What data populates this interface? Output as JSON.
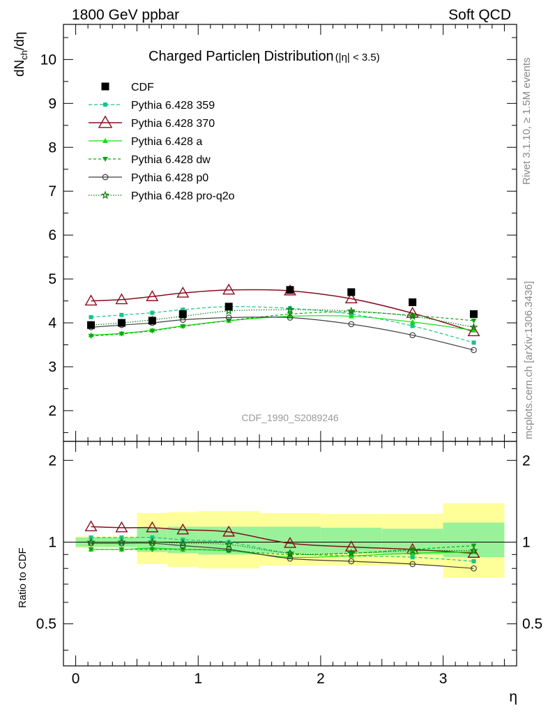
{
  "header": {
    "left": "1800 GeV ppbar",
    "right": "Soft QCD"
  },
  "side_text": {
    "rivet": "Rivet 3.1.10, ≥ 1.5M events",
    "mcplots": "mcplots.cern.ch [arXiv:1306.3436]"
  },
  "chart_data": {
    "type": "line",
    "title": "Charged Particleη Distribution",
    "title_cut": "(|η| < 3.5)",
    "xlabel": "η",
    "ylabel": "dN",
    "ylabel_sub": "ch",
    "ylabel_tail": "/dη",
    "ratio_ylabel": "Ratio to CDF",
    "analysis_id": "CDF_1990_S2089246",
    "xlim": [
      -0.1,
      3.6
    ],
    "ylim": [
      1.3,
      10.8
    ],
    "ratio_ylim": [
      0.35,
      2.35
    ],
    "x_ticks": [
      "0",
      "1",
      "2",
      "3"
    ],
    "y_ticks": [
      "2",
      "3",
      "4",
      "5",
      "6",
      "7",
      "8",
      "9",
      "10"
    ],
    "ratio_ticks": [
      "0.5",
      "1",
      "2"
    ],
    "colors": {
      "cdf": "#000000",
      "p359": "#19c38a",
      "p370": "#8b0a1e",
      "pa": "#11dd11",
      "pdw": "#0ea80e",
      "pp0": "#3f3f3f",
      "pq2o": "#0a7a0a",
      "band_outer": "#ffff99",
      "band_inner": "#99f299"
    },
    "bins": [
      {
        "lo": 0.0,
        "hi": 0.25
      },
      {
        "lo": 0.25,
        "hi": 0.5
      },
      {
        "lo": 0.5,
        "hi": 0.75
      },
      {
        "lo": 0.75,
        "hi": 1.0
      },
      {
        "lo": 1.0,
        "hi": 1.5
      },
      {
        "lo": 1.5,
        "hi": 2.0
      },
      {
        "lo": 2.0,
        "hi": 2.5
      },
      {
        "lo": 2.5,
        "hi": 3.0
      },
      {
        "lo": 3.0,
        "hi": 3.5
      }
    ],
    "x": [
      0.125,
      0.375,
      0.625,
      0.875,
      1.25,
      1.75,
      2.25,
      2.75,
      3.25
    ],
    "cdf": {
      "name": "CDF",
      "x": [
        0.125,
        0.375,
        0.625,
        0.875,
        1.25,
        1.75,
        2.25,
        2.75,
        3.25
      ],
      "values": [
        3.95,
        4.0,
        4.05,
        4.2,
        4.37,
        4.75,
        4.7,
        4.47,
        4.2
      ],
      "band_outer": [
        [
          0.95,
          1.05
        ],
        [
          0.95,
          1.05
        ],
        [
          0.83,
          1.28
        ],
        [
          0.81,
          1.29
        ],
        [
          0.8,
          1.3
        ],
        [
          0.82,
          1.28
        ],
        [
          0.82,
          1.27
        ],
        [
          0.82,
          1.27
        ],
        [
          0.74,
          1.39
        ]
      ],
      "band_inner": [
        [
          0.96,
          1.04
        ],
        [
          0.96,
          1.04
        ],
        [
          0.92,
          1.13
        ],
        [
          0.91,
          1.14
        ],
        [
          0.9,
          1.14
        ],
        [
          0.91,
          1.14
        ],
        [
          0.91,
          1.13
        ],
        [
          0.9,
          1.12
        ],
        [
          0.88,
          1.18
        ]
      ]
    },
    "series": [
      {
        "key": "p359",
        "name": "Pythia 6.428 359",
        "marker": "square-small",
        "dash": "5,3",
        "values": [
          4.13,
          4.18,
          4.23,
          4.3,
          4.37,
          4.33,
          4.2,
          3.93,
          3.55
        ],
        "ratio": [
          1.04,
          1.04,
          1.04,
          1.02,
          1.0,
          0.91,
          0.89,
          0.88,
          0.85
        ]
      },
      {
        "key": "p370",
        "name": "Pythia 6.428 370",
        "marker": "triangle-open",
        "dash": "",
        "values": [
          4.5,
          4.53,
          4.6,
          4.68,
          4.75,
          4.73,
          4.55,
          4.22,
          3.8
        ],
        "ratio": [
          1.14,
          1.13,
          1.13,
          1.11,
          1.09,
          0.99,
          0.96,
          0.94,
          0.91
        ]
      },
      {
        "key": "pa",
        "name": "Pythia 6.428 a",
        "marker": "triangle",
        "dash": "",
        "values": [
          3.72,
          3.76,
          3.83,
          3.93,
          4.05,
          4.15,
          4.15,
          4.02,
          3.83
        ],
        "ratio": [
          0.94,
          0.94,
          0.95,
          0.94,
          0.93,
          0.88,
          0.89,
          0.91,
          0.92
        ]
      },
      {
        "key": "pdw",
        "name": "Pythia 6.428 dw",
        "marker": "triangle-down",
        "dash": "4,3",
        "values": [
          3.7,
          3.75,
          3.82,
          3.92,
          4.05,
          4.2,
          4.25,
          4.17,
          4.05
        ],
        "ratio": [
          0.94,
          0.94,
          0.94,
          0.94,
          0.93,
          0.9,
          0.91,
          0.94,
          0.97
        ]
      },
      {
        "key": "pp0",
        "name": "Pythia 6.428 p0",
        "marker": "circle-open",
        "dash": "",
        "values": [
          3.9,
          3.95,
          4.0,
          4.07,
          4.12,
          4.12,
          3.97,
          3.72,
          3.38
        ],
        "ratio": [
          0.99,
          0.99,
          0.99,
          0.97,
          0.94,
          0.87,
          0.85,
          0.83,
          0.8
        ]
      },
      {
        "key": "pq2o",
        "name": "Pythia 6.428 pro-q2o",
        "marker": "star",
        "dash": "1.5,2",
        "values": [
          3.95,
          4.0,
          4.07,
          4.15,
          4.27,
          4.3,
          4.27,
          4.15,
          3.9
        ],
        "ratio": [
          1.0,
          1.0,
          1.0,
          0.99,
          0.98,
          0.91,
          0.91,
          0.93,
          0.93
        ]
      }
    ]
  }
}
